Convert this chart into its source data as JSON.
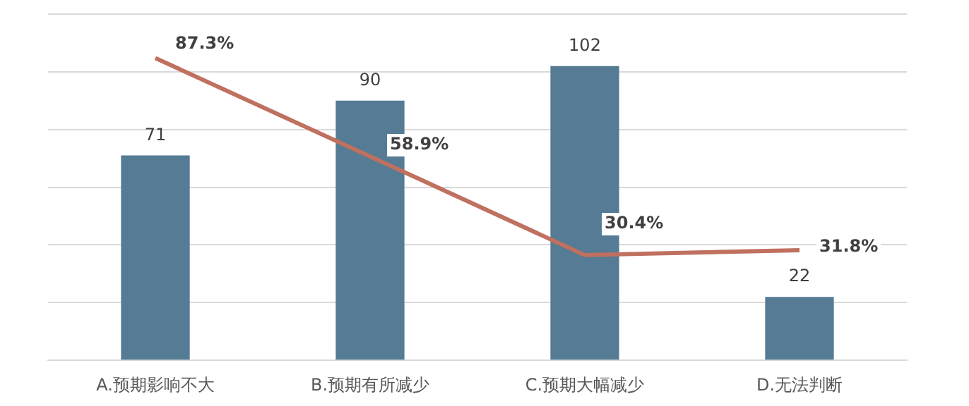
{
  "chart_data": {
    "type": "bar",
    "categories": [
      "A.预期影响不大",
      "B.预期有所减少",
      "C.预期大幅减少",
      "D.无法判断"
    ],
    "series": [
      {
        "color": "#557b95",
        "values": [
          71,
          90,
          102,
          22
        ],
        "value_labels": [
          "71",
          "90",
          "102",
          "22"
        ]
      },
      {
        "type": "line",
        "axis": "y2",
        "color": "#c0705f",
        "values": [
          87.3,
          58.9,
          30.4,
          31.8
        ],
        "value_labels": [
          "87.3%",
          "58.9%",
          "30.4%",
          "31.8%"
        ]
      }
    ],
    "ylim": [
      0,
      120
    ],
    "yticks": [
      {
        "value": 0,
        "label": null
      },
      {
        "value": 20,
        "label": null
      },
      {
        "value": 40,
        "label": null
      },
      {
        "value": 60,
        "label": null
      },
      {
        "value": 80,
        "label": null
      },
      {
        "value": 100,
        "label": null
      },
      {
        "value": 120,
        "label": null
      }
    ],
    "y2lim": [
      0,
      100
    ],
    "grid": "y",
    "tick_labels": "x",
    "legend": false,
    "marker": "none"
  }
}
